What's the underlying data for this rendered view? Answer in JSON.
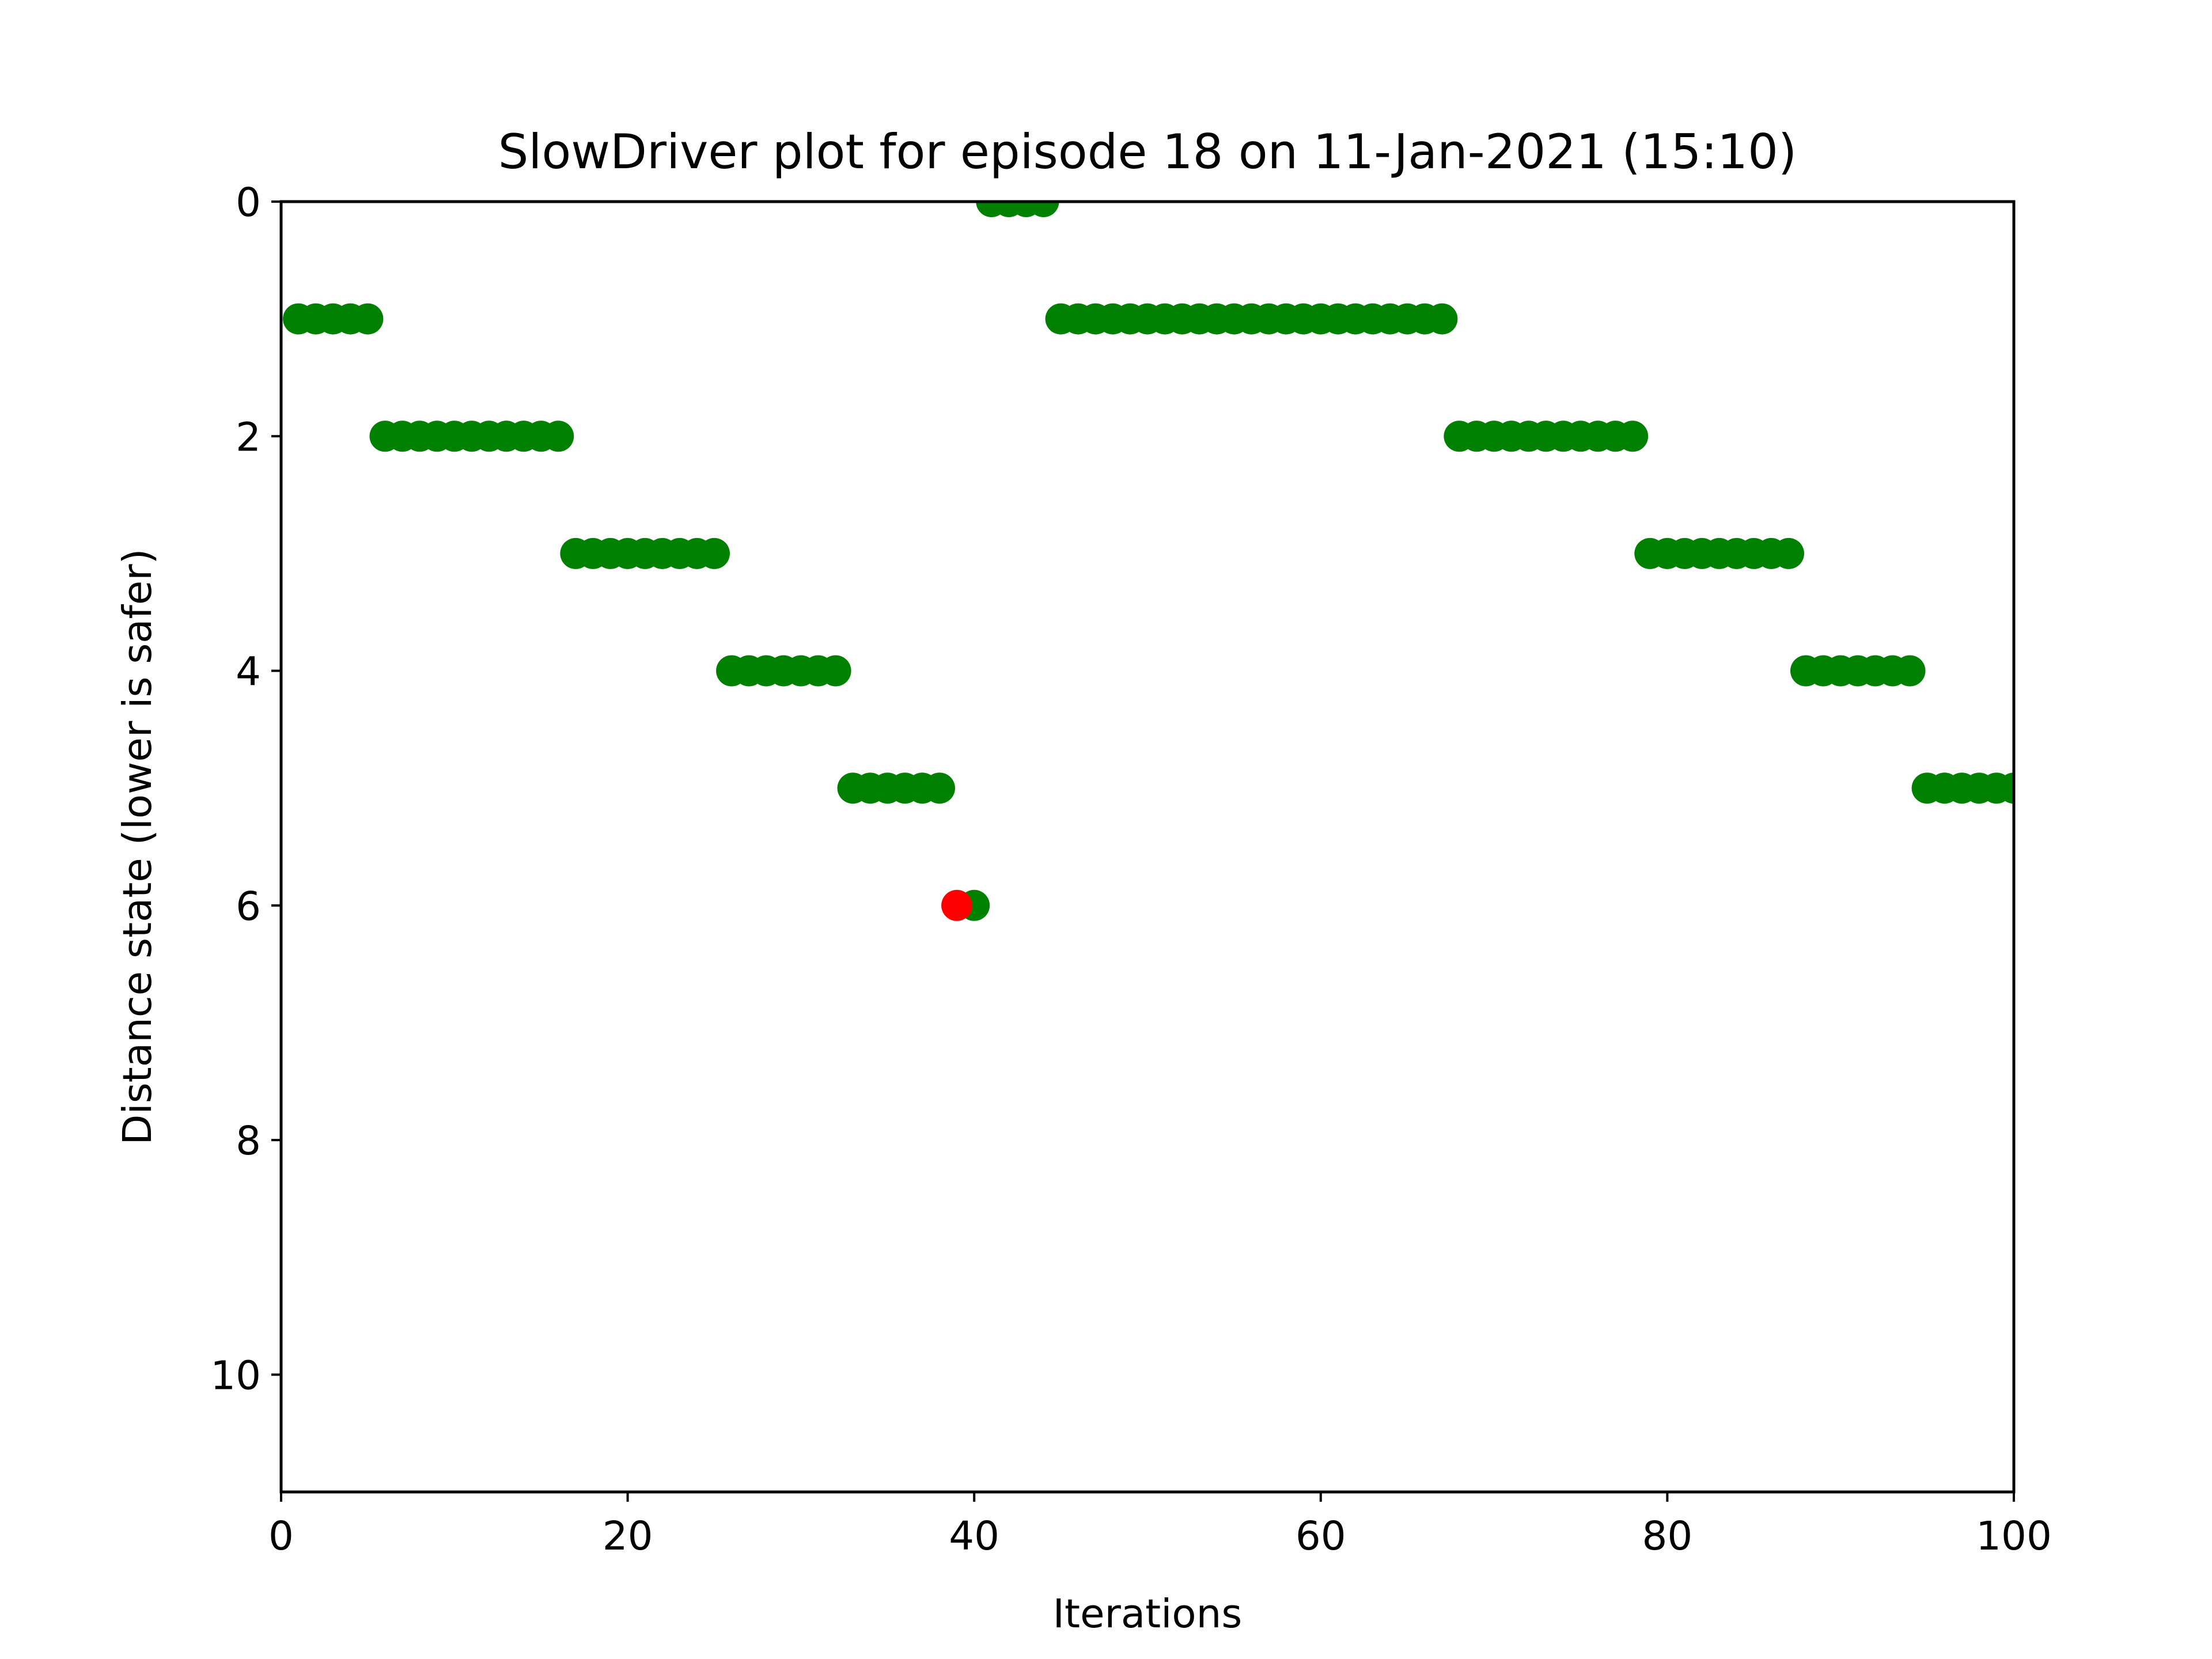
{
  "chart_data": {
    "type": "scatter",
    "title": "SlowDriver plot for episode 18 on 11-Jan-2021 (15:10)",
    "xlabel": "Iterations",
    "ylabel": "Distance state (lower is safer)",
    "xlim": [
      0,
      100
    ],
    "ylim": [
      11,
      0
    ],
    "y_inverted": true,
    "x_ticks": [
      "0",
      "20",
      "40",
      "60",
      "80",
      "100"
    ],
    "y_ticks": [
      "0",
      "2",
      "4",
      "6",
      "8",
      "10"
    ],
    "grid": false,
    "legend": "none",
    "colors": {
      "safe": "#008000",
      "unsafe": "#ff0000"
    },
    "series": [
      {
        "color": "#008000",
        "points": [
          [
            1,
            1
          ],
          [
            2,
            1
          ],
          [
            3,
            1
          ],
          [
            4,
            1
          ],
          [
            5,
            1
          ],
          [
            6,
            2
          ],
          [
            7,
            2
          ],
          [
            8,
            2
          ],
          [
            9,
            2
          ],
          [
            10,
            2
          ],
          [
            11,
            2
          ],
          [
            12,
            2
          ],
          [
            13,
            2
          ],
          [
            14,
            2
          ],
          [
            15,
            2
          ],
          [
            16,
            2
          ],
          [
            17,
            3
          ],
          [
            18,
            3
          ],
          [
            19,
            3
          ],
          [
            20,
            3
          ],
          [
            21,
            3
          ],
          [
            22,
            3
          ],
          [
            23,
            3
          ],
          [
            24,
            3
          ],
          [
            25,
            3
          ],
          [
            26,
            4
          ],
          [
            27,
            4
          ],
          [
            28,
            4
          ],
          [
            29,
            4
          ],
          [
            30,
            4
          ],
          [
            31,
            4
          ],
          [
            32,
            4
          ],
          [
            33,
            5
          ],
          [
            34,
            5
          ],
          [
            35,
            5
          ],
          [
            36,
            5
          ],
          [
            37,
            5
          ],
          [
            38,
            5
          ],
          [
            40,
            6
          ],
          [
            41,
            0
          ],
          [
            42,
            0
          ],
          [
            43,
            0
          ],
          [
            44,
            0
          ],
          [
            45,
            1
          ],
          [
            46,
            1
          ],
          [
            47,
            1
          ],
          [
            48,
            1
          ],
          [
            49,
            1
          ],
          [
            50,
            1
          ],
          [
            51,
            1
          ],
          [
            52,
            1
          ],
          [
            53,
            1
          ],
          [
            54,
            1
          ],
          [
            55,
            1
          ],
          [
            56,
            1
          ],
          [
            57,
            1
          ],
          [
            58,
            1
          ],
          [
            59,
            1
          ],
          [
            60,
            1
          ],
          [
            61,
            1
          ],
          [
            62,
            1
          ],
          [
            63,
            1
          ],
          [
            64,
            1
          ],
          [
            65,
            1
          ],
          [
            66,
            1
          ],
          [
            67,
            1
          ],
          [
            68,
            2
          ],
          [
            69,
            2
          ],
          [
            70,
            2
          ],
          [
            71,
            2
          ],
          [
            72,
            2
          ],
          [
            73,
            2
          ],
          [
            74,
            2
          ],
          [
            75,
            2
          ],
          [
            76,
            2
          ],
          [
            77,
            2
          ],
          [
            78,
            2
          ],
          [
            79,
            3
          ],
          [
            80,
            3
          ],
          [
            81,
            3
          ],
          [
            82,
            3
          ],
          [
            83,
            3
          ],
          [
            84,
            3
          ],
          [
            85,
            3
          ],
          [
            86,
            3
          ],
          [
            87,
            3
          ],
          [
            88,
            4
          ],
          [
            89,
            4
          ],
          [
            90,
            4
          ],
          [
            91,
            4
          ],
          [
            92,
            4
          ],
          [
            93,
            4
          ],
          [
            94,
            4
          ],
          [
            95,
            5
          ],
          [
            96,
            5
          ],
          [
            97,
            5
          ],
          [
            98,
            5
          ],
          [
            99,
            5
          ],
          [
            100,
            5
          ]
        ]
      },
      {
        "color": "#ff0000",
        "points": [
          [
            39,
            6
          ]
        ]
      }
    ]
  }
}
